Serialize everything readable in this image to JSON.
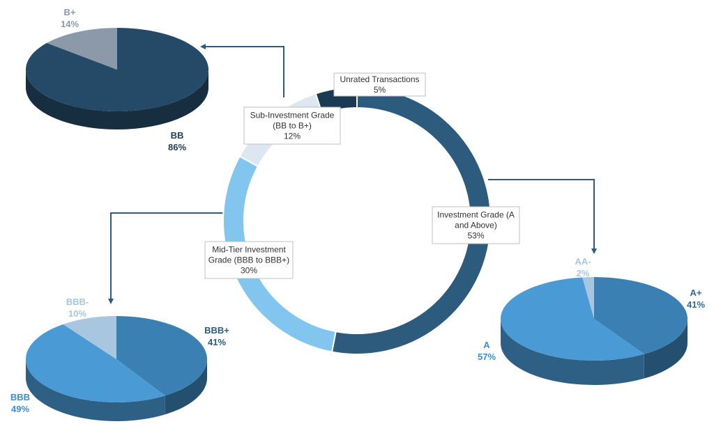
{
  "colors": {
    "investment": "#2d5b7e",
    "mid_tier": "#82c6ef",
    "sub_investment": "#dde7f2",
    "unrated": "#1b3a54",
    "bb": "#244a68",
    "b_plus": "#8b99a8",
    "bbb_plus": "#3a80b3",
    "bbb": "#4a9ad6",
    "bbb_minus": "#a9c6e0",
    "a_plus": "#3a80b3",
    "a": "#4a9ad6",
    "aa_minus": "#a9c6e0",
    "arrow": "#2d5b7e"
  },
  "chart_data": [
    {
      "type": "pie",
      "subtype": "doughnut",
      "segments": [
        {
          "key": "unrated",
          "label_lines": [
            "Unrated Transactions"
          ],
          "value_label": "5%",
          "value": 5
        },
        {
          "key": "investment",
          "label_lines": [
            "Investment Grade (A",
            "and Above)"
          ],
          "value_label": "53%",
          "value": 53
        },
        {
          "key": "mid_tier",
          "label_lines": [
            "Mid-Tier Investment",
            "Grade (BBB to BBB+)"
          ],
          "value_label": "30%",
          "value": 30
        },
        {
          "key": "sub_investment",
          "label_lines": [
            "Sub-Investment Grade",
            "(BB to B+)"
          ],
          "value_label": "12%",
          "value": 12
        }
      ]
    },
    {
      "type": "pie",
      "subtype": "3d",
      "breakdown_of": "sub_investment",
      "slices": [
        {
          "key": "bb",
          "label": "BB",
          "value_label": "86%",
          "value": 86
        },
        {
          "key": "b_plus",
          "label": "B+",
          "value_label": "14%",
          "value": 14
        }
      ]
    },
    {
      "type": "pie",
      "subtype": "3d",
      "breakdown_of": "mid_tier",
      "slices": [
        {
          "key": "bbb_plus",
          "label": "BBB+",
          "value_label": "41%",
          "value": 41
        },
        {
          "key": "bbb",
          "label": "BBB",
          "value_label": "49%",
          "value": 49
        },
        {
          "key": "bbb_minus",
          "label": "BBB-",
          "value_label": "10%",
          "value": 10
        }
      ]
    },
    {
      "type": "pie",
      "subtype": "3d",
      "breakdown_of": "investment",
      "slices": [
        {
          "key": "a_plus",
          "label": "A+",
          "value_label": "41%",
          "value": 41
        },
        {
          "key": "a",
          "label": "A",
          "value_label": "57%",
          "value": 57
        },
        {
          "key": "aa_minus",
          "label": "AA-",
          "value_label": "2%",
          "value": 2
        }
      ]
    }
  ]
}
